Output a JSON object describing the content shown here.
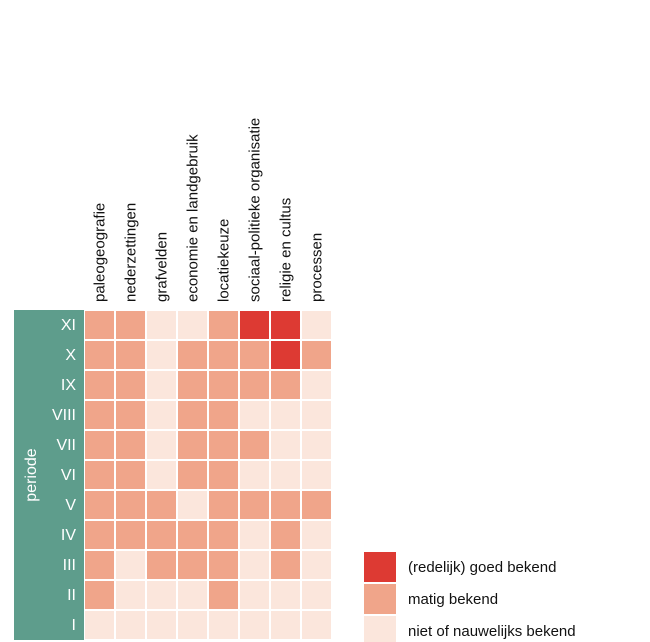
{
  "chart_data": {
    "type": "heatmap",
    "columns": [
      "paleogeografie",
      "nederzettingen",
      "grafvelden",
      "economie en landgebruik",
      "locatiekeuze",
      "sociaal-politieke organisatie",
      "religie en cultus",
      "processen"
    ],
    "rows": [
      "XI",
      "X",
      "IX",
      "VIII",
      "VII",
      "VI",
      "V",
      "IV",
      "III",
      "II",
      "I"
    ],
    "row_axis_label": "periode",
    "levels": {
      "0": {
        "label": "niet of nauwelijks bekend",
        "color": "#fbe6dc"
      },
      "1": {
        "label": "matig bekend",
        "color": "#f0a58a"
      },
      "2": {
        "label": "(redelijk) goed bekend",
        "color": "#dd3a33"
      }
    },
    "legend_order": [
      "2",
      "1",
      "0"
    ],
    "values": [
      [
        1,
        1,
        0,
        0,
        1,
        2,
        2,
        0
      ],
      [
        1,
        1,
        0,
        1,
        1,
        1,
        2,
        1
      ],
      [
        1,
        1,
        0,
        1,
        1,
        1,
        1,
        0
      ],
      [
        1,
        1,
        0,
        1,
        1,
        0,
        0,
        0
      ],
      [
        1,
        1,
        0,
        1,
        1,
        1,
        0,
        0
      ],
      [
        1,
        1,
        0,
        1,
        1,
        0,
        0,
        0
      ],
      [
        1,
        1,
        1,
        0,
        1,
        1,
        1,
        1
      ],
      [
        1,
        1,
        1,
        1,
        1,
        0,
        1,
        0
      ],
      [
        1,
        0,
        1,
        1,
        1,
        0,
        1,
        0
      ],
      [
        1,
        0,
        0,
        0,
        1,
        0,
        0,
        0
      ],
      [
        0,
        0,
        0,
        0,
        0,
        0,
        0,
        0
      ]
    ],
    "row_axis_color": "#5e9d8c",
    "cell_border_color": "#ffffff"
  }
}
